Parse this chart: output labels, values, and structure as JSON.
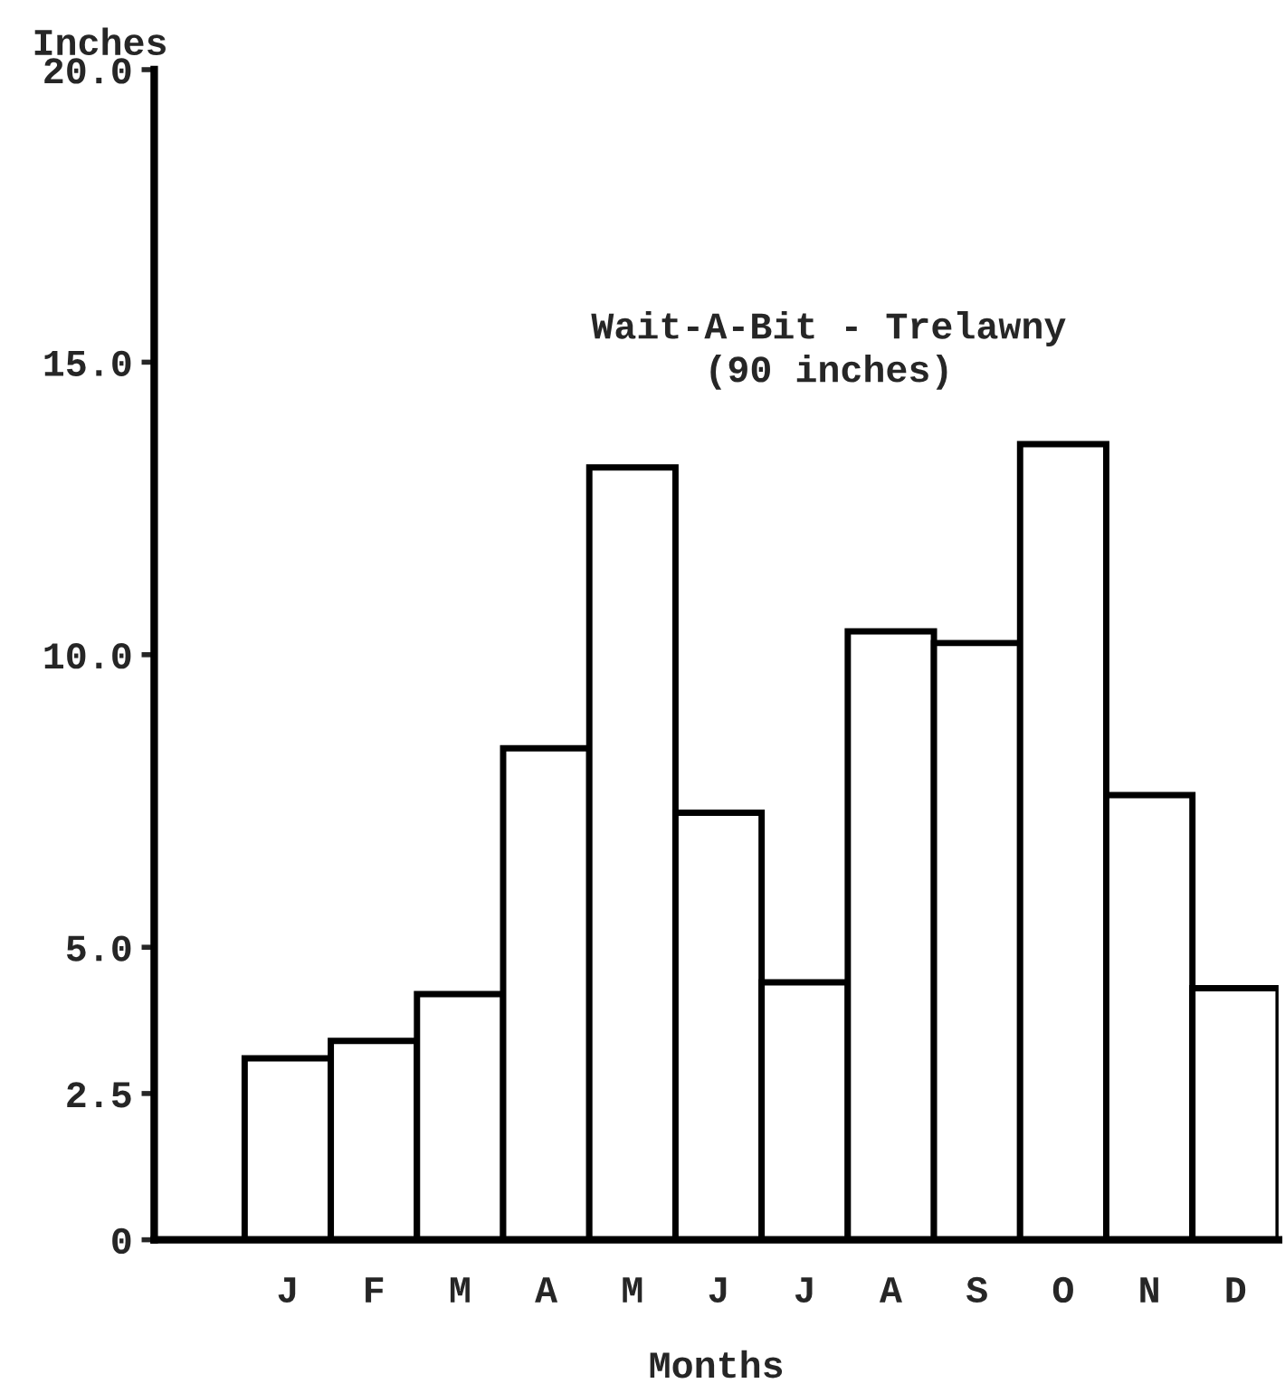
{
  "chart_data": {
    "type": "bar",
    "ylabel": "Inches",
    "xlabel": "Months",
    "annotations": [
      "Wait-A-Bit - Trelawny\n(90 inches)"
    ],
    "categories": [
      "J",
      "F",
      "M",
      "A",
      "M",
      "J",
      "J",
      "A",
      "S",
      "O",
      "N",
      "D"
    ],
    "values": [
      3.1,
      3.4,
      4.2,
      8.4,
      13.2,
      7.3,
      4.4,
      10.4,
      10.2,
      13.6,
      7.6,
      4.3
    ],
    "color": "#ffffff",
    "ylim": [
      0,
      20
    ],
    "yticks": [
      {
        "value": 0,
        "label": "0"
      },
      2.5,
      {
        "value": 5,
        "label": "5.0"
      },
      {
        "value": 10,
        "label": "10.0"
      },
      {
        "value": 15,
        "label": "15.0"
      },
      {
        "value": 20,
        "label": "20.0"
      }
    ],
    "grid": false,
    "legend": false
  }
}
